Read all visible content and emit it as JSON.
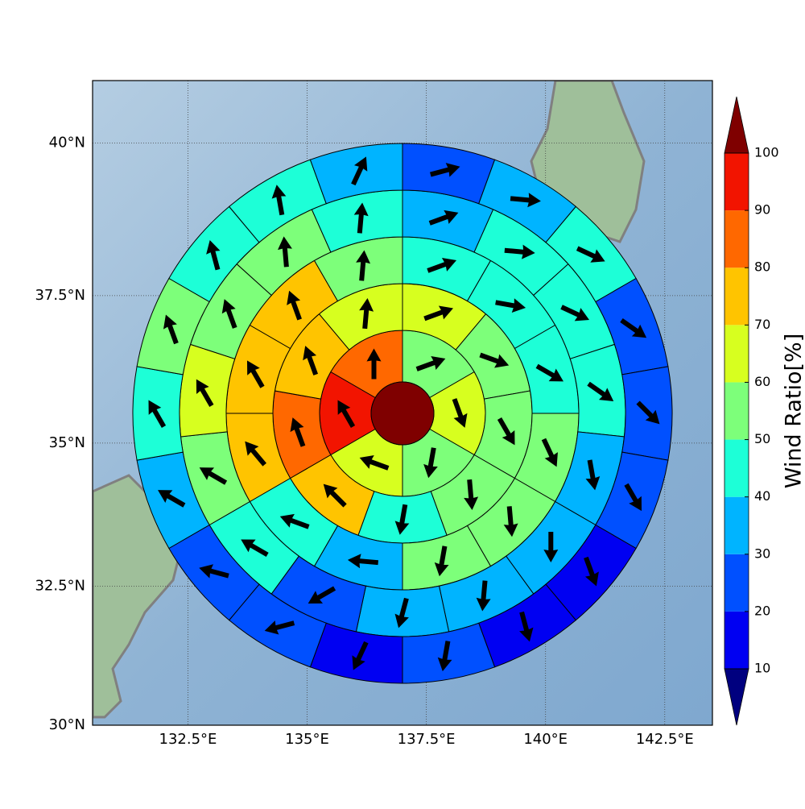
{
  "chart_data": {
    "type": "polar-sector-map",
    "projection": "mercator",
    "xlim": [
      130.5,
      143.5
    ],
    "ylim": [
      30,
      41
    ],
    "xticks": [
      {
        "value": 132.5,
        "label": "132.5°E"
      },
      {
        "value": 135,
        "label": "135°E"
      },
      {
        "value": 137.5,
        "label": "137.5°E"
      },
      {
        "value": 140,
        "label": "140°E"
      },
      {
        "value": 142.5,
        "label": "142.5°E"
      }
    ],
    "yticks": [
      {
        "value": 30,
        "label": "30°N"
      },
      {
        "value": 32.5,
        "label": "32.5°N"
      },
      {
        "value": 35,
        "label": "35°N"
      },
      {
        "value": 37.5,
        "label": "37.5°N"
      },
      {
        "value": 40,
        "label": "40°N"
      }
    ],
    "grid": true,
    "center_color": "#7f0000",
    "rings": [
      {
        "values": [
          55,
          65,
          55,
          65,
          95,
          85
        ],
        "directions": [
          70,
          160,
          190,
          290,
          330,
          0
        ]
      },
      {
        "values": [
          65,
          55,
          55,
          55,
          45,
          75,
          85,
          75,
          65
        ],
        "directions": [
          70,
          110,
          150,
          175,
          190,
          315,
          340,
          340,
          5
        ]
      },
      {
        "values": [
          45,
          45,
          45,
          55,
          55,
          55,
          35,
          45,
          75,
          75,
          75,
          55
        ],
        "directions": [
          70,
          100,
          120,
          155,
          175,
          190,
          275,
          290,
          320,
          330,
          340,
          5
        ]
      },
      {
        "values": [
          35,
          45,
          45,
          45,
          35,
          35,
          35,
          35,
          25,
          45,
          55,
          65,
          55,
          55,
          45
        ],
        "directions": [
          70,
          95,
          115,
          125,
          170,
          180,
          185,
          195,
          240,
          300,
          300,
          330,
          340,
          355,
          5
        ]
      },
      {
        "values": [
          25,
          35,
          45,
          25,
          25,
          25,
          15,
          15,
          25,
          15,
          25,
          25,
          35,
          45,
          55,
          45,
          45,
          35
        ],
        "directions": [
          75,
          95,
          115,
          125,
          135,
          150,
          160,
          165,
          190,
          205,
          255,
          285,
          300,
          330,
          340,
          345,
          350,
          25
        ]
      }
    ],
    "colorbar": {
      "label": "Wind Ratio[%]",
      "ticks": [
        10,
        20,
        30,
        40,
        50,
        60,
        70,
        80,
        90,
        100
      ],
      "colors": [
        "#0000f2",
        "#0050ff",
        "#00b4ff",
        "#1dffd7",
        "#7dff7a",
        "#d7ff1f",
        "#ffc400",
        "#ff6800",
        "#f21400"
      ],
      "over": "#7f0000",
      "under": "#00007f"
    }
  }
}
